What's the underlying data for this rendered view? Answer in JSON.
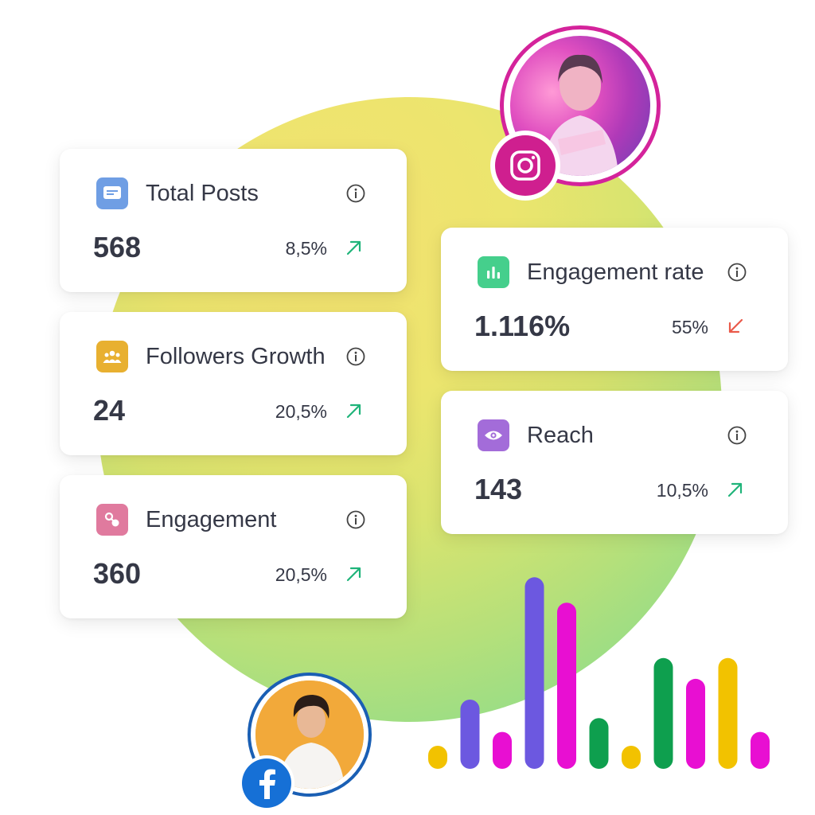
{
  "colors": {
    "card_bg": "#ffffff",
    "up": "#1fb47a",
    "down": "#ea5a4a",
    "instagram": "#cf1f8f",
    "facebook": "#1670d6"
  },
  "cards": [
    {
      "title": "Total Posts",
      "value": "568",
      "change": "8,5%",
      "trend": "up",
      "icon": "document-icon",
      "icon_color": "#6f9ee4"
    },
    {
      "title": "Followers Growth",
      "value": "24",
      "change": "20,5%",
      "trend": "up",
      "icon": "group-icon",
      "icon_color": "#e8b030"
    },
    {
      "title": "Engagement",
      "value": "360",
      "change": "20,5%",
      "trend": "up",
      "icon": "engagement-icon",
      "icon_color": "#e07a9e"
    },
    {
      "title": "Engagement rate",
      "value": "1.116%",
      "change": "55%",
      "trend": "down",
      "icon": "bar-chart-icon",
      "icon_color": "#45cf8c"
    },
    {
      "title": "Reach",
      "value": "143",
      "change": "10,5%",
      "trend": "up",
      "icon": "eye-icon",
      "icon_color": "#a36cd9"
    }
  ],
  "avatars": [
    {
      "platform": "instagram",
      "icon": "instagram-icon"
    },
    {
      "platform": "facebook",
      "icon": "facebook-icon"
    }
  ],
  "decorative_bars": [
    {
      "color": "#f2c200",
      "value": 1
    },
    {
      "color": "#6c58e0",
      "value": 3
    },
    {
      "color": "#e80fd2",
      "value": 1.6
    },
    {
      "color": "#6c58e0",
      "value": 8.3
    },
    {
      "color": "#e80fd2",
      "value": 7.2
    },
    {
      "color": "#0e9f4e",
      "value": 2.2
    },
    {
      "color": "#f2c200",
      "value": 1
    },
    {
      "color": "#0e9f4e",
      "value": 4.8
    },
    {
      "color": "#e80fd2",
      "value": 3.9
    },
    {
      "color": "#f2c200",
      "value": 4.8
    },
    {
      "color": "#e80fd2",
      "value": 1.6
    }
  ]
}
